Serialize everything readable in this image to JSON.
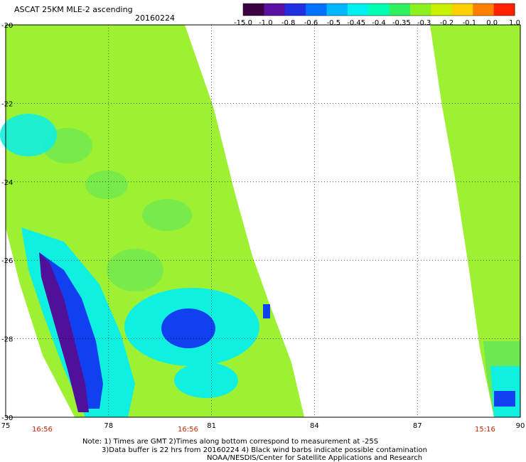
{
  "header": {
    "title": "ASCAT 25KM MLE-2 ascending",
    "date": "20160224"
  },
  "colorbar": {
    "labels": [
      "-15.0",
      "-1.0",
      "-0.8",
      "-0.6",
      "-0.5",
      "-0.45",
      "-0.4",
      "-0.35",
      "-0.3",
      "-0.2",
      "-0.1",
      "0.0",
      "1.0"
    ],
    "colors": [
      "#3a0040",
      "#5a10a0",
      "#2030e0",
      "#0070ff",
      "#00b8ff",
      "#00f0f0",
      "#00ffb0",
      "#30f060",
      "#8cf020",
      "#c8f000",
      "#ffd000",
      "#ff8000",
      "#ff2000"
    ]
  },
  "axes": {
    "x_ticks": [
      "75",
      "78",
      "81",
      "84",
      "87",
      "90"
    ],
    "y_ticks": [
      "-20",
      "-22",
      "-24",
      "-26",
      "-28",
      "-30"
    ],
    "x_range": [
      75,
      90
    ],
    "y_range": [
      -30,
      -20
    ]
  },
  "swath_times": {
    "t1": "16:56",
    "t2": "16:56",
    "t3": "15:16"
  },
  "notes": {
    "line1": "Note: 1) Times are GMT 2)Times along bottom correspond to measurement at -25S",
    "line2": "3)Data buffer is 22 hrs from 20160224 4) Black wind barbs indicate possible contamination",
    "line3": "NOAA/NESDIS/Center for Satellite Applications and Research"
  },
  "palette": {
    "base_green": "#9ef032",
    "mid_green": "#6ee850",
    "cyan": "#10f0e0",
    "blue": "#1040f0",
    "purple": "#50109a"
  }
}
